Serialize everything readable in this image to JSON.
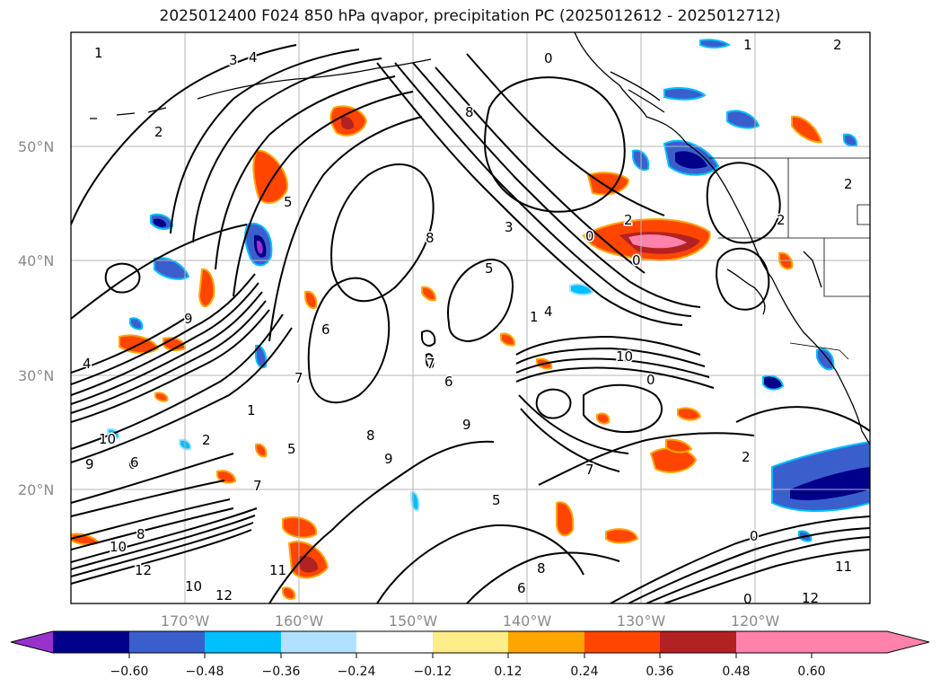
{
  "title": "2025012400 F024 850 hPa qvapor, precipitation PC (2025012612 - 2025012712)",
  "lat_labels": [
    "50°N",
    "40°N",
    "30°N",
    "20°N"
  ],
  "lon_labels": [
    "170°W",
    "160°W",
    "150°W",
    "140°W",
    "130°W",
    "120°W"
  ],
  "colorbar": {
    "ticks": [
      "−0.60",
      "−0.48",
      "−0.36",
      "−0.24",
      "−0.12",
      "0.12",
      "0.24",
      "0.36",
      "0.48",
      "0.60"
    ],
    "colors": [
      "#9932cc",
      "#00008b",
      "#3a5fcd",
      "#00bfff",
      "#b0e2ff",
      "#ffffff",
      "#ffec8b",
      "#ffa500",
      "#ff4500",
      "#b22222",
      "#ff82ab"
    ]
  },
  "contour_labels": [
    "1",
    "3",
    "4",
    "2",
    "0",
    "1",
    "2",
    "2",
    "2",
    "5",
    "8",
    "0",
    "3",
    "5",
    "2",
    "0",
    "0",
    "6",
    "8",
    "4",
    "6",
    "10",
    "9",
    "1",
    "7",
    "7",
    "6",
    "9",
    "8",
    "9",
    "5",
    "1",
    "2",
    "2",
    "10",
    "8",
    "11",
    "12",
    "10",
    "12",
    "11",
    "6",
    "7",
    "10",
    "4",
    "0",
    "12",
    "8",
    "5",
    "9",
    "6",
    "0",
    "7"
  ]
}
